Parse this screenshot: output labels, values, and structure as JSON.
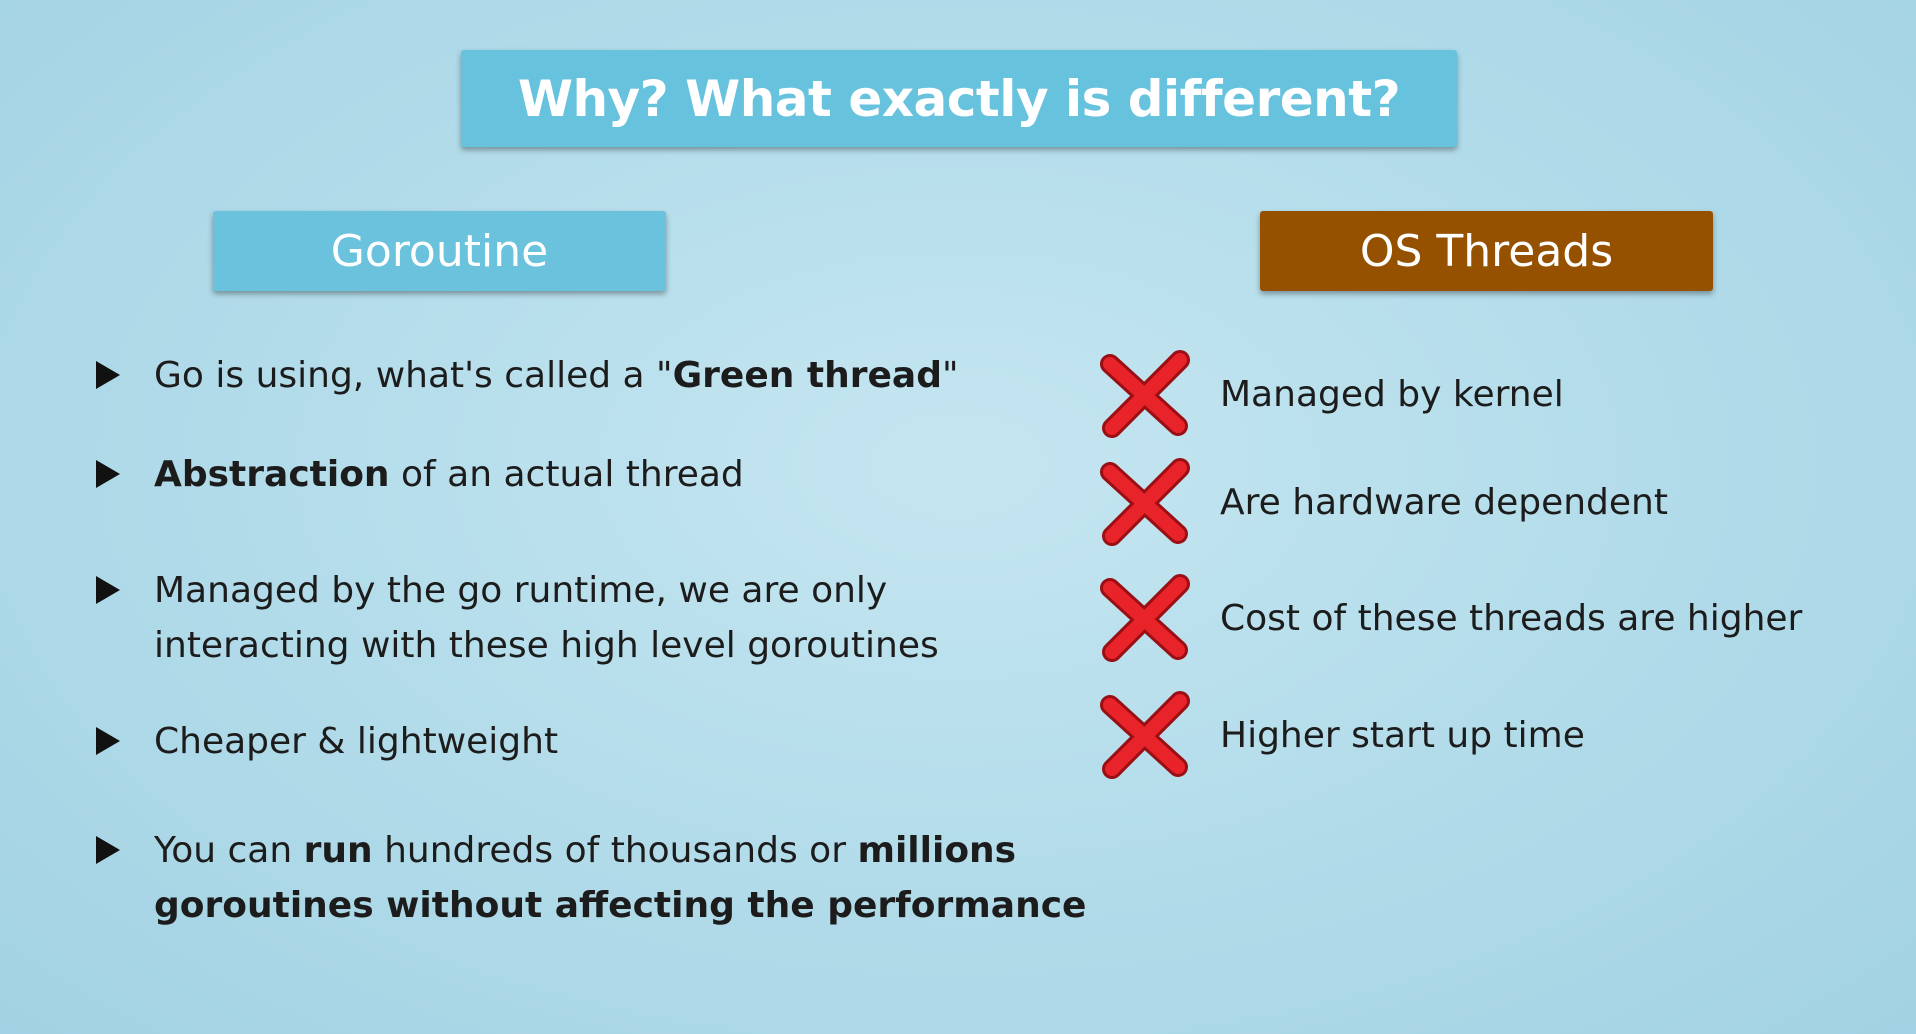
{
  "title": "Why? What exactly is different?",
  "left_column": {
    "header": "Goroutine",
    "bullets": [
      {
        "t1": "Go is using, what's called a \"",
        "b1": "Green thread",
        "t2": "\""
      },
      {
        "b1": "Abstraction",
        "t1": " of an actual thread"
      },
      {
        "line1": "Managed by the go runtime, we are only",
        "line2": "interacting with these high level goroutines"
      },
      {
        "t1": "Cheaper & lightweight"
      },
      {
        "t1": "You can ",
        "b1": "run",
        "t2": " hundreds of thousands or ",
        "b2": "millions",
        "b3": "goroutines without affecting the performance"
      }
    ]
  },
  "right_column": {
    "header": "OS Threads",
    "items": [
      "Managed by kernel",
      "Are hardware dependent",
      "Cost of these threads are higher",
      "Higher start up time"
    ],
    "x_color": "#e8232a",
    "x_outline": "#9a0f14"
  },
  "colors": {
    "title_bg": "#67c2de",
    "goroutine_bg": "#6ac2dd",
    "os_threads_bg": "#955100"
  }
}
